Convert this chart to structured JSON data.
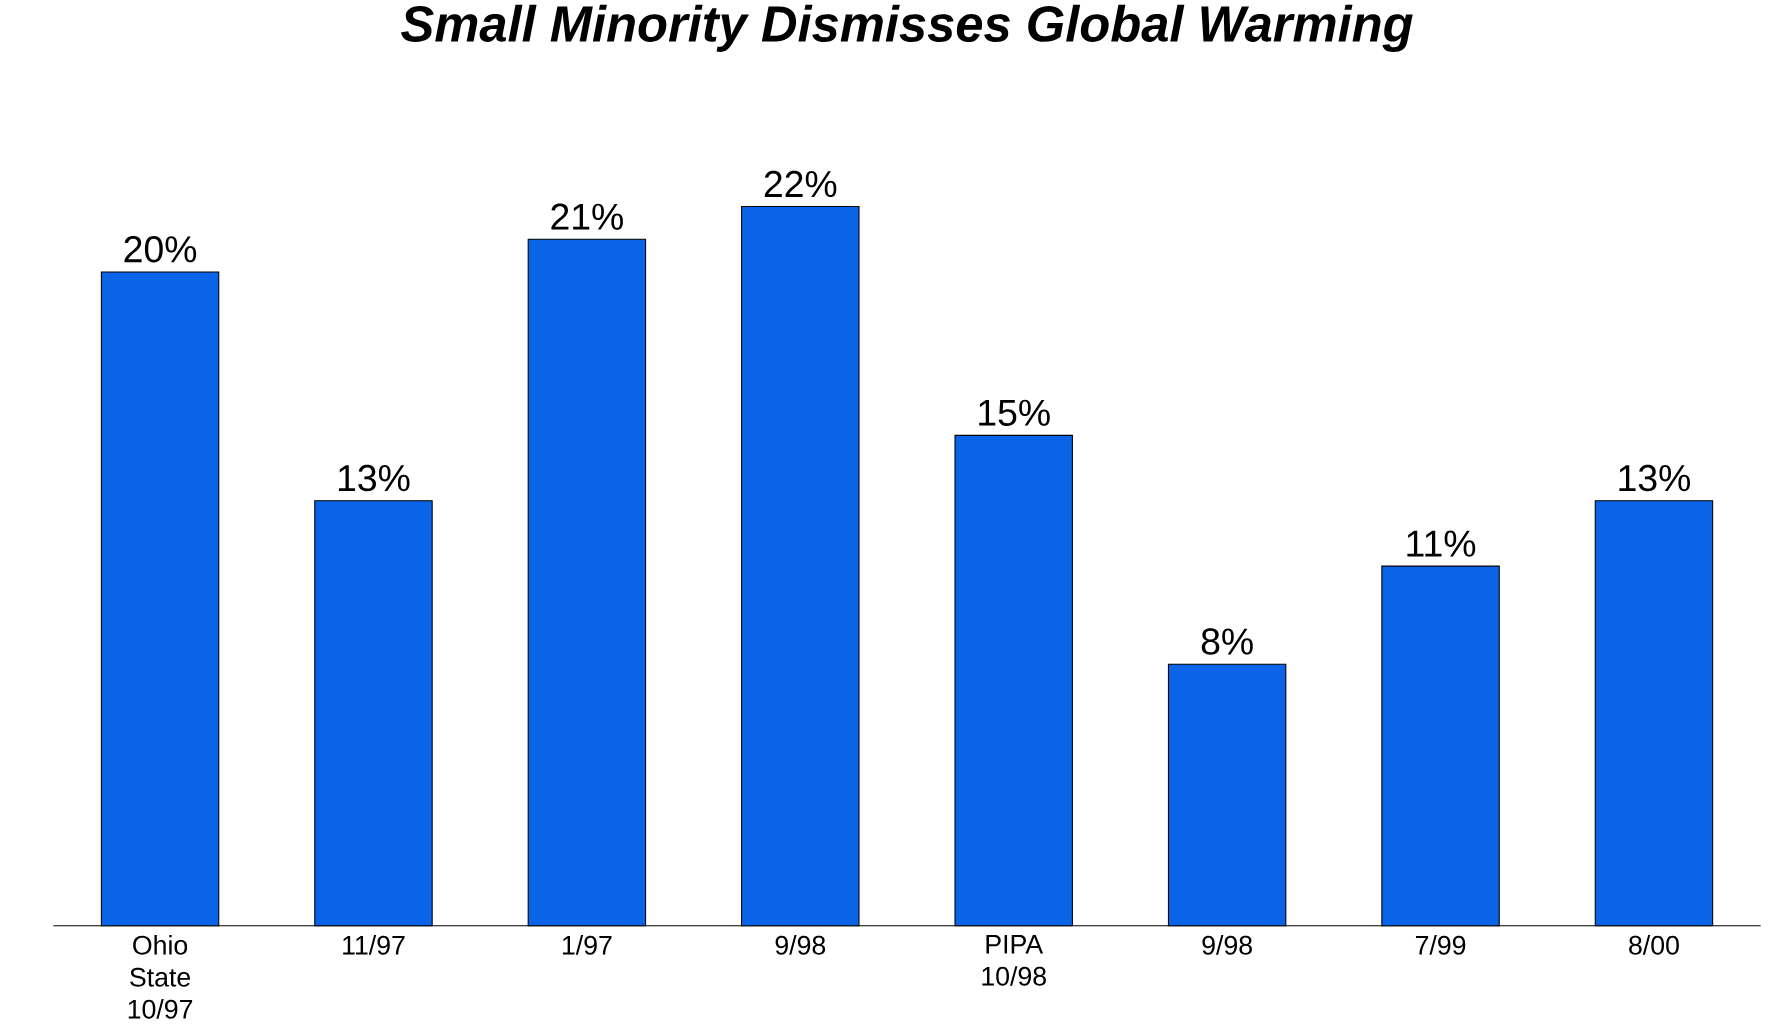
{
  "chart_data": {
    "type": "bar",
    "title": "Small Minority Dismisses Global Warming",
    "categories": [
      "Ohio State 10/97",
      "11/97",
      "1/97",
      "9/98",
      "PIPA 10/98",
      "9/98",
      "7/99",
      "8/00"
    ],
    "values": [
      20,
      13,
      21,
      22,
      15,
      8,
      11,
      13
    ],
    "value_labels": [
      "20%",
      "13%",
      "21%",
      "22%",
      "15%",
      "8%",
      "11%",
      "13%"
    ],
    "color": "#0a64e8"
  }
}
